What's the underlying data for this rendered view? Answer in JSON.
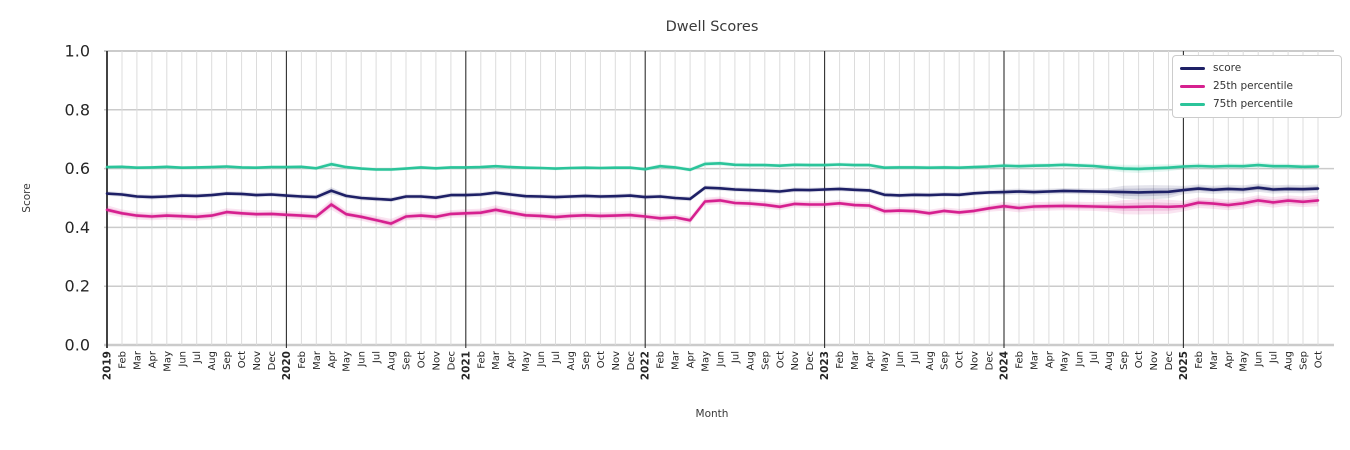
{
  "colors": {
    "background": "#ffffff",
    "month_grid": "#dcdcdc",
    "major_grid": "#cbcbcb",
    "spine": "#2e2e2e",
    "year_line": "#2e2e2e",
    "title": "#3a3a3a",
    "tick_label": "#262626",
    "legend_border": "#cccccc",
    "legend_text": "#333333"
  },
  "chart_data": {
    "type": "line",
    "title": "Dwell Scores",
    "xlabel": "Month",
    "ylabel": "Score",
    "ylim": [
      0.0,
      1.0
    ],
    "grid": true,
    "legend_position": "upper right",
    "y_ticks": [
      0.0,
      0.2,
      0.4,
      0.6,
      0.8,
      1.0
    ],
    "y_tick_labels": [
      "0.0",
      "0.2",
      "0.4",
      "0.6",
      "0.8",
      "1.0"
    ],
    "x_tick_labels": [
      "2019",
      "Feb",
      "Mar",
      "Apr",
      "May",
      "Jun",
      "Jul",
      "Aug",
      "Sep",
      "Oct",
      "Nov",
      "Dec",
      "2020",
      "Feb",
      "Mar",
      "Apr",
      "May",
      "Jun",
      "Jul",
      "Aug",
      "Sep",
      "Oct",
      "Nov",
      "Dec",
      "2021",
      "Feb",
      "Mar",
      "Apr",
      "May",
      "Jun",
      "Jul",
      "Aug",
      "Sep",
      "Oct",
      "Nov",
      "Dec",
      "2022",
      "Feb",
      "Mar",
      "Apr",
      "May",
      "Jun",
      "Jul",
      "Aug",
      "Sep",
      "Oct",
      "Nov",
      "Dec",
      "2023",
      "Feb",
      "Mar",
      "Apr",
      "May",
      "Jun",
      "Jul",
      "Aug",
      "Sep",
      "Oct",
      "Nov",
      "Dec",
      "2024",
      "Feb",
      "Mar",
      "Apr",
      "May",
      "Jun",
      "Jul",
      "Aug",
      "Sep",
      "Oct",
      "Nov",
      "Dec",
      "2025",
      "Feb",
      "Mar",
      "Apr",
      "May",
      "Jun",
      "Jul",
      "Aug",
      "Sep",
      "Oct"
    ],
    "year_separator_indices": [
      12,
      24,
      36,
      48,
      60,
      72
    ],
    "series": [
      {
        "name": "score",
        "color": "#1e2066",
        "values": [
          0.515,
          0.512,
          0.505,
          0.503,
          0.505,
          0.508,
          0.507,
          0.51,
          0.515,
          0.514,
          0.51,
          0.512,
          0.508,
          0.505,
          0.503,
          0.525,
          0.507,
          0.5,
          0.497,
          0.494,
          0.505,
          0.505,
          0.501,
          0.51,
          0.51,
          0.512,
          0.518,
          0.512,
          0.506,
          0.505,
          0.503,
          0.505,
          0.507,
          0.505,
          0.506,
          0.508,
          0.503,
          0.505,
          0.5,
          0.497,
          0.535,
          0.533,
          0.529,
          0.527,
          0.525,
          0.522,
          0.528,
          0.527,
          0.529,
          0.531,
          0.528,
          0.526,
          0.511,
          0.509,
          0.511,
          0.51,
          0.512,
          0.511,
          0.516,
          0.519,
          0.52,
          0.522,
          0.52,
          0.522,
          0.524,
          0.523,
          0.522,
          0.521,
          0.52,
          0.519,
          0.52,
          0.521,
          0.527,
          0.532,
          0.528,
          0.531,
          0.529,
          0.535,
          0.529,
          0.531,
          0.53,
          0.532
        ],
        "band_halfwidth": [
          0.008,
          0.008,
          0.008,
          0.008,
          0.008,
          0.008,
          0.008,
          0.008,
          0.008,
          0.008,
          0.008,
          0.008,
          0.008,
          0.008,
          0.008,
          0.012,
          0.008,
          0.008,
          0.008,
          0.008,
          0.008,
          0.008,
          0.008,
          0.008,
          0.008,
          0.008,
          0.008,
          0.008,
          0.008,
          0.008,
          0.008,
          0.008,
          0.008,
          0.008,
          0.008,
          0.008,
          0.008,
          0.008,
          0.008,
          0.008,
          0.008,
          0.008,
          0.008,
          0.008,
          0.008,
          0.008,
          0.008,
          0.008,
          0.008,
          0.008,
          0.008,
          0.008,
          0.008,
          0.008,
          0.008,
          0.008,
          0.008,
          0.008,
          0.008,
          0.008,
          0.01,
          0.01,
          0.01,
          0.01,
          0.01,
          0.01,
          0.01,
          0.012,
          0.022,
          0.024,
          0.024,
          0.022,
          0.014,
          0.014,
          0.014,
          0.014,
          0.014,
          0.014,
          0.014,
          0.014,
          0.014,
          0.014
        ]
      },
      {
        "name": "25th percentile",
        "color": "#d6208f",
        "values": [
          0.46,
          0.448,
          0.44,
          0.437,
          0.44,
          0.438,
          0.436,
          0.44,
          0.452,
          0.448,
          0.445,
          0.446,
          0.443,
          0.44,
          0.437,
          0.478,
          0.445,
          0.436,
          0.425,
          0.413,
          0.437,
          0.44,
          0.436,
          0.446,
          0.448,
          0.45,
          0.46,
          0.45,
          0.441,
          0.439,
          0.435,
          0.439,
          0.441,
          0.439,
          0.44,
          0.442,
          0.437,
          0.431,
          0.434,
          0.424,
          0.488,
          0.492,
          0.483,
          0.481,
          0.477,
          0.47,
          0.48,
          0.478,
          0.478,
          0.482,
          0.476,
          0.474,
          0.455,
          0.457,
          0.455,
          0.448,
          0.456,
          0.451,
          0.456,
          0.465,
          0.472,
          0.466,
          0.471,
          0.472,
          0.473,
          0.472,
          0.471,
          0.47,
          0.469,
          0.47,
          0.471,
          0.47,
          0.472,
          0.484,
          0.481,
          0.476,
          0.482,
          0.492,
          0.485,
          0.491,
          0.487,
          0.492
        ],
        "band_halfwidth": [
          0.015,
          0.013,
          0.013,
          0.013,
          0.013,
          0.013,
          0.013,
          0.013,
          0.013,
          0.013,
          0.013,
          0.013,
          0.013,
          0.013,
          0.013,
          0.018,
          0.014,
          0.013,
          0.014,
          0.016,
          0.013,
          0.013,
          0.013,
          0.013,
          0.014,
          0.014,
          0.015,
          0.014,
          0.013,
          0.013,
          0.013,
          0.013,
          0.013,
          0.013,
          0.013,
          0.013,
          0.012,
          0.012,
          0.012,
          0.012,
          0.013,
          0.013,
          0.012,
          0.012,
          0.012,
          0.012,
          0.012,
          0.012,
          0.012,
          0.012,
          0.012,
          0.012,
          0.012,
          0.012,
          0.012,
          0.012,
          0.012,
          0.012,
          0.012,
          0.012,
          0.015,
          0.015,
          0.015,
          0.015,
          0.015,
          0.015,
          0.015,
          0.017,
          0.024,
          0.026,
          0.026,
          0.024,
          0.018,
          0.018,
          0.018,
          0.018,
          0.018,
          0.018,
          0.018,
          0.018,
          0.018,
          0.02
        ]
      },
      {
        "name": "75th percentile",
        "color": "#2bc49a",
        "values": [
          0.605,
          0.606,
          0.603,
          0.604,
          0.606,
          0.603,
          0.604,
          0.605,
          0.607,
          0.604,
          0.603,
          0.605,
          0.605,
          0.606,
          0.601,
          0.615,
          0.605,
          0.6,
          0.597,
          0.597,
          0.6,
          0.604,
          0.601,
          0.604,
          0.604,
          0.605,
          0.608,
          0.605,
          0.603,
          0.602,
          0.6,
          0.602,
          0.603,
          0.602,
          0.603,
          0.603,
          0.598,
          0.608,
          0.604,
          0.596,
          0.616,
          0.618,
          0.613,
          0.612,
          0.612,
          0.61,
          0.613,
          0.612,
          0.612,
          0.614,
          0.612,
          0.612,
          0.603,
          0.604,
          0.604,
          0.603,
          0.604,
          0.603,
          0.605,
          0.607,
          0.61,
          0.608,
          0.61,
          0.611,
          0.613,
          0.611,
          0.609,
          0.604,
          0.6,
          0.599,
          0.601,
          0.603,
          0.607,
          0.609,
          0.607,
          0.609,
          0.608,
          0.612,
          0.608,
          0.608,
          0.606,
          0.607
        ],
        "band_halfwidth": [
          0.006,
          0.006,
          0.006,
          0.006,
          0.006,
          0.006,
          0.006,
          0.006,
          0.006,
          0.006,
          0.006,
          0.006,
          0.006,
          0.006,
          0.006,
          0.009,
          0.006,
          0.006,
          0.006,
          0.006,
          0.006,
          0.006,
          0.006,
          0.006,
          0.006,
          0.006,
          0.006,
          0.006,
          0.006,
          0.006,
          0.006,
          0.006,
          0.006,
          0.006,
          0.006,
          0.006,
          0.007,
          0.008,
          0.007,
          0.007,
          0.008,
          0.008,
          0.007,
          0.007,
          0.007,
          0.007,
          0.007,
          0.007,
          0.007,
          0.007,
          0.007,
          0.007,
          0.007,
          0.007,
          0.007,
          0.007,
          0.007,
          0.007,
          0.007,
          0.007,
          0.008,
          0.008,
          0.008,
          0.008,
          0.008,
          0.008,
          0.008,
          0.01,
          0.013,
          0.014,
          0.013,
          0.012,
          0.009,
          0.009,
          0.009,
          0.009,
          0.009,
          0.01,
          0.009,
          0.009,
          0.009,
          0.009
        ]
      }
    ]
  }
}
